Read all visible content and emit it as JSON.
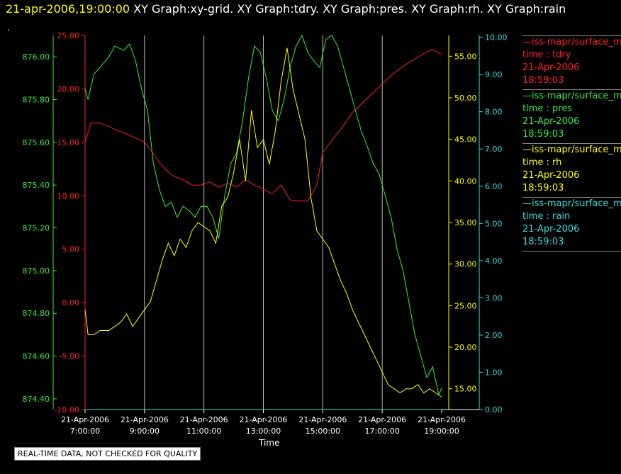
{
  "header": {
    "timestamp": "21-apr-2006,19:00:00",
    "graphs": "XY Graph:xy-grid.  XY Graph:tdry.  XY Graph:pres.  XY Graph:rh.  XY Graph:rain",
    "dot": "."
  },
  "disclaimer": "REAL-TIME DATA, NOT CHECKED FOR QUALITY",
  "legend": [
    {
      "source": "—iss-mapr/surface_m",
      "var": "time : tdry",
      "date": "21-Apr-2006",
      "time": "18:59:03",
      "color": "#ff2020"
    },
    {
      "source": "—iss-mapr/surface_m",
      "var": "time : pres",
      "date": "21-Apr-2006",
      "time": "18:59:03",
      "color": "#33ee33"
    },
    {
      "source": "—iss-mapr/surface_m",
      "var": "time : rh",
      "date": "21-Apr-2006",
      "time": "18:59:03",
      "color": "#ffff00"
    },
    {
      "source": "—iss-mapr/surface_m",
      "var": "time : rain",
      "date": "21-Apr-2006",
      "time": "18:59:03",
      "color": "#33dddd"
    }
  ],
  "chart_data": {
    "type": "line",
    "xlabel": "Time",
    "xlim": [
      7,
      19
    ],
    "x_ticks": [
      {
        "v": 7,
        "date": "21-Apr-2006",
        "time": "7:00:00"
      },
      {
        "v": 9,
        "date": "21-Apr-2006",
        "time": "9:00:00"
      },
      {
        "v": 11,
        "date": "21-Apr-2006",
        "time": "11:00:00"
      },
      {
        "v": 13,
        "date": "21-Apr-2006",
        "time": "13:00:00"
      },
      {
        "v": 15,
        "date": "21-Apr-2006",
        "time": "15:00:00"
      },
      {
        "v": 17,
        "date": "21-Apr-2006",
        "time": "17:00:00"
      },
      {
        "v": 19,
        "date": "21-Apr-2006",
        "time": "19:00:00"
      }
    ],
    "x_grid_hours": [
      9,
      11,
      13,
      15,
      17
    ],
    "axes": {
      "pres": {
        "color": "#33ee33",
        "ylim": [
          874.35,
          876.1
        ],
        "ticks": [
          "874.40",
          "874.60",
          "874.80",
          "875.00",
          "875.20",
          "875.40",
          "875.60",
          "875.80",
          "876.00"
        ]
      },
      "tdry": {
        "color": "#ff2020",
        "ylim": [
          -10,
          25
        ],
        "ticks": [
          "-10.00",
          "-5.00",
          "0.00",
          "5.00",
          "10.00",
          "15.00",
          "20.00",
          "25.00"
        ]
      },
      "rh": {
        "color": "#ffff00",
        "ylim": [
          12.5,
          57.5
        ],
        "ticks": [
          "15.00",
          "20.00",
          "25.00",
          "30.00",
          "35.00",
          "40.00",
          "45.00",
          "50.00",
          "55.00"
        ]
      },
      "rain": {
        "color": "#33dddd",
        "ylim": [
          0,
          10.05
        ],
        "ticks": [
          "0.00",
          "1.00",
          "2.00",
          "3.00",
          "4.00",
          "5.00",
          "6.00",
          "7.00",
          "8.00",
          "9.00",
          "10.00"
        ]
      }
    },
    "series": [
      {
        "name": "pres",
        "axis": "pres",
        "color": "#33ee33",
        "x": [
          7,
          7.1,
          7.3,
          7.5,
          7.8,
          8.0,
          8.3,
          8.5,
          8.7,
          8.9,
          9.1,
          9.3,
          9.5,
          9.7,
          9.9,
          10.1,
          10.3,
          10.5,
          10.7,
          10.9,
          11.1,
          11.3,
          11.5,
          11.7,
          11.9,
          12.1,
          12.3,
          12.5,
          12.7,
          12.9,
          13.1,
          13.3,
          13.5,
          13.7,
          13.9,
          14.1,
          14.3,
          14.5,
          14.7,
          14.9,
          15.1,
          15.3,
          15.5,
          15.7,
          15.9,
          16.1,
          16.3,
          16.5,
          16.7,
          16.9,
          17.1,
          17.3,
          17.5,
          17.7,
          17.9,
          18.1,
          18.3,
          18.5,
          18.7,
          18.9,
          19.0
        ],
        "values": [
          875.85,
          875.8,
          875.92,
          875.95,
          876.0,
          876.05,
          876.03,
          876.06,
          875.98,
          875.85,
          875.75,
          875.5,
          875.38,
          875.3,
          875.32,
          875.25,
          875.3,
          875.28,
          875.25,
          875.3,
          875.3,
          875.25,
          875.15,
          875.35,
          875.5,
          875.55,
          875.7,
          875.9,
          876.05,
          876.02,
          875.9,
          875.75,
          875.7,
          875.8,
          875.95,
          876.05,
          876.1,
          876.02,
          875.98,
          875.95,
          876.08,
          876.1,
          876.05,
          875.95,
          875.85,
          875.75,
          875.65,
          875.58,
          875.5,
          875.45,
          875.35,
          875.25,
          875.1,
          875.0,
          874.85,
          874.7,
          874.6,
          874.5,
          874.55,
          874.42,
          874.45
        ]
      },
      {
        "name": "tdry",
        "axis": "tdry",
        "color": "#ff2020",
        "x": [
          7,
          7.2,
          7.5,
          7.8,
          8.0,
          8.2,
          8.4,
          8.6,
          8.8,
          9.0,
          9.2,
          9.4,
          9.6,
          9.8,
          10.0,
          10.3,
          10.6,
          10.9,
          11.2,
          11.5,
          11.8,
          12.1,
          12.4,
          12.7,
          13.0,
          13.3,
          13.6,
          13.9,
          14.2,
          14.5,
          14.8,
          15.0,
          15.2,
          15.4,
          15.6,
          15.8,
          16.0,
          16.3,
          16.6,
          16.9,
          17.2,
          17.5,
          17.8,
          18.1,
          18.4,
          18.7,
          19.0
        ],
        "values": [
          15,
          16.8,
          16.8,
          16.5,
          16.2,
          16.0,
          15.8,
          15.5,
          15.3,
          15.0,
          14.3,
          13.5,
          12.8,
          12.2,
          11.8,
          11.5,
          11.0,
          11.0,
          11.3,
          10.8,
          11.2,
          10.8,
          11.5,
          11.0,
          10.6,
          10.2,
          11.0,
          9.6,
          9.5,
          9.5,
          11.0,
          14.0,
          14.8,
          15.5,
          16.2,
          17.0,
          17.8,
          18.6,
          19.4,
          20.2,
          21.0,
          21.7,
          22.3,
          22.8,
          23.3,
          23.7,
          23.2
        ]
      },
      {
        "name": "rh",
        "axis": "rh",
        "color": "#ffff00",
        "x": [
          7,
          7.1,
          7.3,
          7.5,
          7.8,
          8.0,
          8.2,
          8.4,
          8.6,
          8.8,
          9.0,
          9.2,
          9.4,
          9.6,
          9.8,
          10.0,
          10.2,
          10.4,
          10.6,
          10.8,
          11.0,
          11.2,
          11.4,
          11.6,
          11.8,
          12.0,
          12.2,
          12.4,
          12.6,
          12.8,
          13.0,
          13.2,
          13.4,
          13.6,
          13.8,
          14.0,
          14.2,
          14.4,
          14.6,
          14.8,
          15.0,
          15.2,
          15.4,
          15.6,
          15.8,
          16.0,
          16.2,
          16.4,
          16.6,
          16.8,
          17.0,
          17.2,
          17.4,
          17.6,
          17.8,
          18.0,
          18.2,
          18.4,
          18.6,
          18.8,
          19.0
        ],
        "values": [
          24.5,
          21.5,
          21.5,
          22.0,
          22.0,
          22.5,
          23.0,
          24.0,
          22.5,
          23.5,
          24.5,
          25.5,
          28.0,
          30.5,
          32.5,
          31.0,
          33.0,
          32.0,
          34.0,
          35.0,
          34.5,
          34.0,
          32.5,
          37.0,
          38.0,
          41.0,
          45.0,
          40.0,
          48.5,
          44.0,
          45.0,
          42.0,
          46.0,
          52.0,
          56.0,
          51.0,
          48.0,
          45.0,
          38.0,
          34.0,
          33.0,
          32.0,
          30.0,
          28.0,
          26.5,
          24.5,
          23.0,
          21.5,
          20.0,
          18.5,
          17.0,
          15.5,
          15.0,
          14.5,
          15.0,
          15.0,
          15.5,
          14.5,
          15.0,
          14.5,
          14.0
        ]
      },
      {
        "name": "rain",
        "axis": "rain",
        "color": "#33dddd",
        "x": [
          7,
          19
        ],
        "values": [
          0,
          0
        ]
      }
    ]
  }
}
